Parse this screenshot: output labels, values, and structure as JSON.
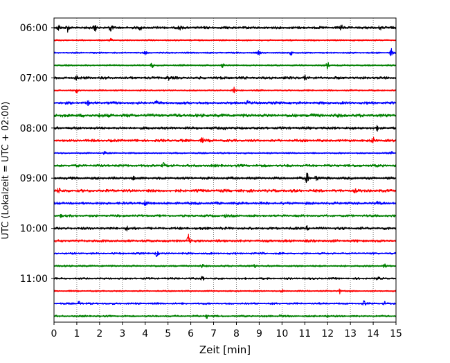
{
  "chart_data": {
    "type": "line",
    "title": "",
    "xlabel": "Zeit  [min]",
    "ylabel": "UTC (Lokalzeit = UTC + 02:00)",
    "xlim": [
      0,
      15
    ],
    "x_ticks": [
      0,
      1,
      2,
      3,
      4,
      5,
      6,
      7,
      8,
      9,
      10,
      11,
      12,
      13,
      14,
      15
    ],
    "x_tick_labels": [
      "0",
      "1",
      "2",
      "3",
      "4",
      "5",
      "6",
      "7",
      "8",
      "9",
      "10",
      "11",
      "12",
      "13",
      "14",
      "15"
    ],
    "grid": "vertical dotted",
    "y_tick_labels": [
      "06:00",
      "07:00",
      "08:00",
      "09:00",
      "10:00",
      "11:00"
    ],
    "y_tick_rows": [
      0,
      4,
      8,
      12,
      16,
      20
    ],
    "row_minutes": 15,
    "start_time": "06:00",
    "rows": [
      {
        "time": "06:00",
        "color": "#000000",
        "amp": 2.0,
        "events": [
          {
            "t": 0.2,
            "a": 5
          },
          {
            "t": 0.6,
            "a": 5
          },
          {
            "t": 1.8,
            "a": 6
          },
          {
            "t": 2.5,
            "a": 6
          },
          {
            "t": 3.8,
            "a": 3
          },
          {
            "t": 5.5,
            "a": 3
          },
          {
            "t": 12.6,
            "a": 3
          },
          {
            "t": 14.3,
            "a": 3
          }
        ]
      },
      {
        "time": "06:15",
        "color": "#ff0000",
        "amp": 1.2,
        "events": [
          {
            "t": 2.5,
            "a": 2
          }
        ]
      },
      {
        "time": "06:30",
        "color": "#0000ff",
        "amp": 1.2,
        "events": [
          {
            "t": 4.0,
            "a": 2
          },
          {
            "t": 9.0,
            "a": 3
          },
          {
            "t": 10.4,
            "a": 3
          },
          {
            "t": 14.8,
            "a": 6
          }
        ]
      },
      {
        "time": "06:45",
        "color": "#008000",
        "amp": 1.2,
        "events": [
          {
            "t": 4.3,
            "a": 4
          },
          {
            "t": 7.4,
            "a": 3
          },
          {
            "t": 12.0,
            "a": 5
          }
        ]
      },
      {
        "time": "07:00",
        "color": "#000000",
        "amp": 2.0,
        "events": [
          {
            "t": 1.0,
            "a": 3
          },
          {
            "t": 5.0,
            "a": 3
          },
          {
            "t": 11.0,
            "a": 3
          }
        ]
      },
      {
        "time": "07:15",
        "color": "#ff0000",
        "amp": 1.2,
        "events": [
          {
            "t": 7.9,
            "a": 8
          },
          {
            "t": 1.0,
            "a": 3
          }
        ]
      },
      {
        "time": "07:30",
        "color": "#0000ff",
        "amp": 2.0,
        "events": [
          {
            "t": 1.5,
            "a": 2
          },
          {
            "t": 4.5,
            "a": 2
          },
          {
            "t": 8.5,
            "a": 2
          }
        ]
      },
      {
        "time": "07:45",
        "color": "#008000",
        "amp": 2.5,
        "events": [
          {
            "t": 2.0,
            "a": 2
          },
          {
            "t": 11.3,
            "a": 3
          }
        ]
      },
      {
        "time": "08:00",
        "color": "#000000",
        "amp": 2.0,
        "events": [
          {
            "t": 7.5,
            "a": 3
          },
          {
            "t": 14.2,
            "a": 3
          }
        ]
      },
      {
        "time": "08:15",
        "color": "#ff0000",
        "amp": 2.0,
        "events": [
          {
            "t": 14.0,
            "a": 4
          },
          {
            "t": 6.5,
            "a": 3
          }
        ]
      },
      {
        "time": "08:30",
        "color": "#0000ff",
        "amp": 1.2,
        "events": [
          {
            "t": 2.2,
            "a": 2
          },
          {
            "t": 14.8,
            "a": 3
          }
        ]
      },
      {
        "time": "08:45",
        "color": "#008000",
        "amp": 2.0,
        "events": [
          {
            "t": 4.8,
            "a": 3
          }
        ]
      },
      {
        "time": "09:00",
        "color": "#000000",
        "amp": 2.0,
        "events": [
          {
            "t": 11.1,
            "a": 7
          },
          {
            "t": 11.5,
            "a": 6
          },
          {
            "t": 3.5,
            "a": 2
          }
        ]
      },
      {
        "time": "09:15",
        "color": "#ff0000",
        "amp": 2.2,
        "events": [
          {
            "t": 0.2,
            "a": 4
          },
          {
            "t": 13.2,
            "a": 2
          }
        ]
      },
      {
        "time": "09:30",
        "color": "#0000ff",
        "amp": 2.0,
        "events": [
          {
            "t": 4.0,
            "a": 4
          },
          {
            "t": 14.2,
            "a": 2
          }
        ]
      },
      {
        "time": "09:45",
        "color": "#008000",
        "amp": 1.8,
        "events": [
          {
            "t": 0.3,
            "a": 2
          },
          {
            "t": 7.5,
            "a": 2
          }
        ]
      },
      {
        "time": "10:00",
        "color": "#000000",
        "amp": 2.0,
        "events": [
          {
            "t": 3.2,
            "a": 3
          },
          {
            "t": 11.1,
            "a": 3
          }
        ]
      },
      {
        "time": "10:15",
        "color": "#ff0000",
        "amp": 2.0,
        "events": [
          {
            "t": 5.9,
            "a": 8
          }
        ]
      },
      {
        "time": "10:30",
        "color": "#0000ff",
        "amp": 1.5,
        "events": [
          {
            "t": 4.5,
            "a": 4
          },
          {
            "t": 9.2,
            "a": 2
          }
        ]
      },
      {
        "time": "10:45",
        "color": "#008000",
        "amp": 1.5,
        "events": [
          {
            "t": 6.5,
            "a": 2
          },
          {
            "t": 14.5,
            "a": 3
          },
          {
            "t": 8.8,
            "a": 2
          }
        ]
      },
      {
        "time": "11:00",
        "color": "#000000",
        "amp": 1.5,
        "events": [
          {
            "t": 6.5,
            "a": 3
          },
          {
            "t": 14.2,
            "a": 2
          }
        ]
      },
      {
        "time": "11:15",
        "color": "#ff0000",
        "amp": 1.2,
        "events": [
          {
            "t": 12.5,
            "a": 5
          },
          {
            "t": 10.0,
            "a": 2
          }
        ]
      },
      {
        "time": "11:30",
        "color": "#0000ff",
        "amp": 1.5,
        "events": [
          {
            "t": 1.1,
            "a": 3
          },
          {
            "t": 13.6,
            "a": 3
          },
          {
            "t": 14.5,
            "a": 2
          }
        ]
      },
      {
        "time": "11:45",
        "color": "#008000",
        "amp": 1.5,
        "events": [
          {
            "t": 6.7,
            "a": 3
          },
          {
            "t": 9.9,
            "a": 2
          },
          {
            "t": 12.0,
            "a": 2
          }
        ]
      }
    ]
  }
}
